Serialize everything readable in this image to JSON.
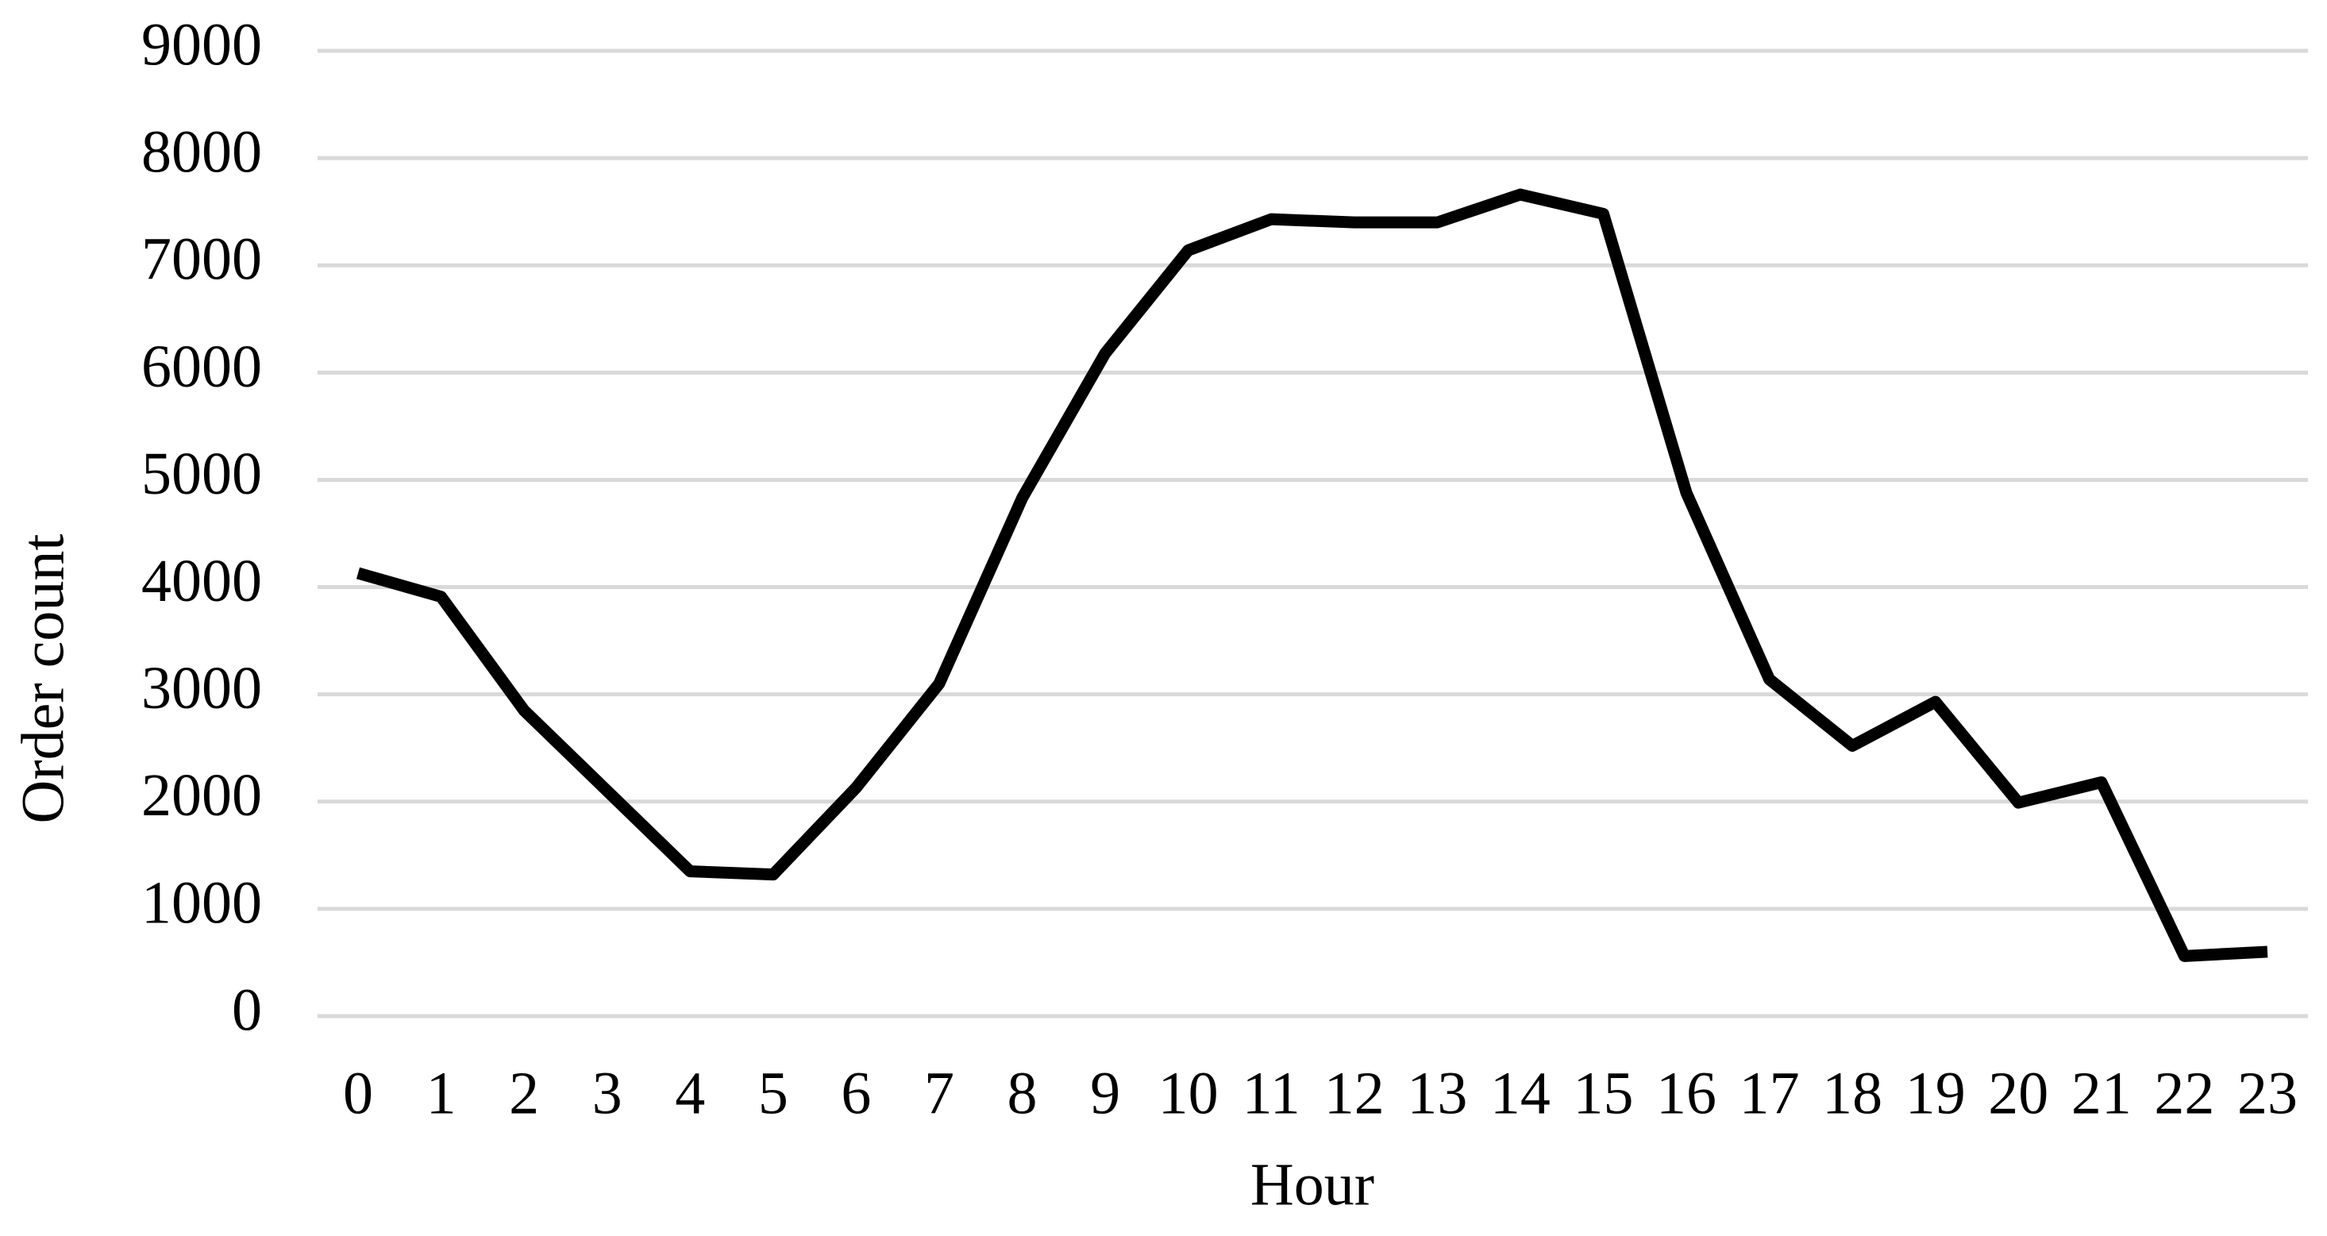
{
  "chart_data": {
    "type": "line",
    "x_label": "Hour",
    "y_label": "Order count",
    "categories": [
      "0",
      "1",
      "2",
      "3",
      "4",
      "5",
      "6",
      "7",
      "8",
      "9",
      "10",
      "11",
      "12",
      "13",
      "14",
      "15",
      "16",
      "17",
      "18",
      "19",
      "20",
      "21",
      "22",
      "23"
    ],
    "values": [
      4130,
      3910,
      2850,
      2100,
      1350,
      1320,
      2130,
      3100,
      4830,
      6180,
      7140,
      7430,
      7400,
      7400,
      7660,
      7480,
      4880,
      3140,
      2520,
      2930,
      1990,
      2180,
      560,
      600
    ],
    "color": "#000000",
    "ylim": [
      0,
      9000
    ],
    "yticks": [
      0,
      1000,
      2000,
      3000,
      4000,
      5000,
      6000,
      7000,
      8000,
      9000
    ],
    "grid": true
  }
}
